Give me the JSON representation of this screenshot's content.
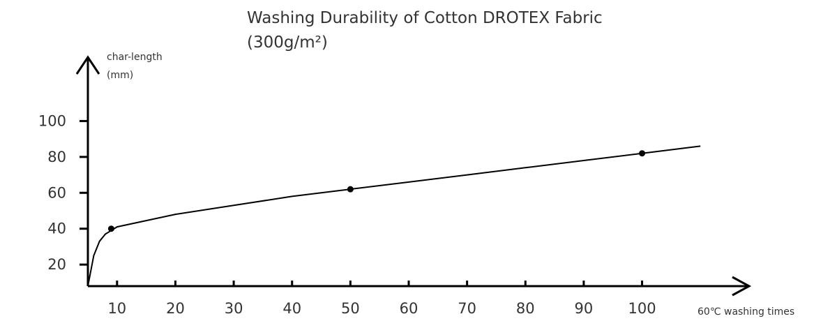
{
  "chart_data": {
    "type": "line",
    "title_line1": "Washing Durability of Cotton DROTEX Fabric",
    "title_line2": "(300g/m²)",
    "ylabel_line1": "char-length",
    "ylabel_line2": "(mm)",
    "xlabel": "60℃ washing times",
    "x_ticks": [
      10,
      20,
      30,
      40,
      50,
      60,
      70,
      80,
      90,
      100
    ],
    "x_tick_labels": [
      "10",
      "20",
      "30",
      "40",
      "50",
      "60",
      "70",
      "80",
      "90",
      "100"
    ],
    "y_ticks": [
      20,
      40,
      60,
      80,
      100
    ],
    "y_tick_labels": [
      "20",
      "40",
      "60",
      "80",
      "100"
    ],
    "xlim": [
      5,
      115
    ],
    "ylim": [
      8,
      120
    ],
    "grid": false,
    "series": [
      {
        "x": [
          5,
          6,
          7,
          8,
          9,
          10,
          20,
          30,
          40,
          50,
          60,
          70,
          80,
          90,
          100,
          110
        ],
        "y": [
          8,
          25,
          33,
          37,
          39,
          41,
          48,
          53,
          58,
          62,
          66,
          70,
          74,
          78,
          82,
          86
        ]
      }
    ],
    "markers": {
      "x": [
        9,
        50,
        100
      ],
      "y": [
        40,
        62,
        82
      ]
    }
  }
}
